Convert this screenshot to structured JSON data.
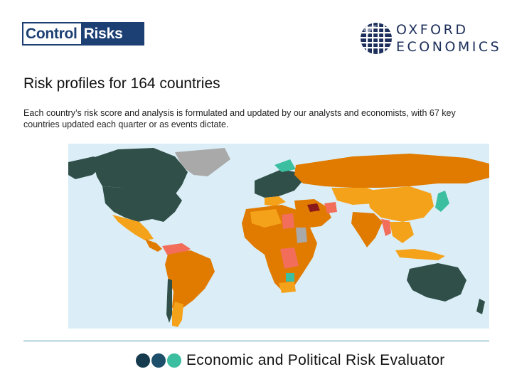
{
  "logos": {
    "control_risks": {
      "left": "Control",
      "right": "Risks"
    },
    "oxford_economics": {
      "line1": "OXFORD",
      "line2": "ECONOMICS"
    }
  },
  "heading": {
    "title": "Risk profiles for 164 countries"
  },
  "description": "Each country’s risk score and analysis is formulated and updated by our analysts and economists, with 67 key countries updated each quarter or as events dictate.",
  "footer": {
    "label": "Economic and Political Risk Evaluator"
  },
  "colors": {
    "brand_navy": "#1c3f74",
    "ocean": "#dbeef7",
    "risk_low": "#2f4f48",
    "risk_low_medium": "#3cbfa0",
    "risk_medium": "#f5a21b",
    "risk_high": "#e07b00",
    "risk_very_high": "#f26d5a",
    "risk_extreme": "#8b1a1a",
    "no_data": "#a9a9a9",
    "footer_dot_1": "#163a4e",
    "footer_dot_2": "#1d4f6a",
    "footer_dot_3": "#3cbfa0"
  }
}
